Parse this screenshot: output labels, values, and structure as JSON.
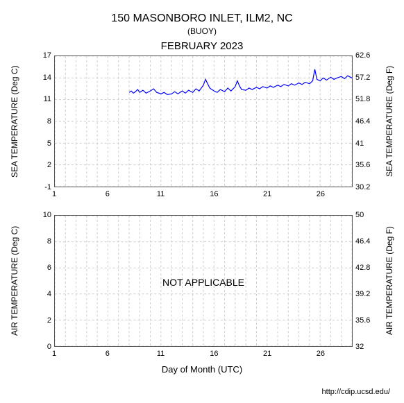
{
  "title_main": "150 MASONBORO INLET, ILM2, NC",
  "title_sub": "(BUOY)",
  "title_month": "FEBRUARY 2023",
  "footer": "http://cdip.ucsd.edu/",
  "xaxis": {
    "label": "Day of Month (UTC)",
    "min": 1,
    "max": 29,
    "ticks": [
      1,
      6,
      11,
      16,
      21,
      26
    ]
  },
  "panels": {
    "sea": {
      "ylabel_left": "SEA TEMPERATURE (Deg C)",
      "ylabel_right": "SEA TEMPERATURE (Deg F)",
      "ylim_left": [
        -1,
        17
      ],
      "yticks_left": [
        -1,
        2,
        5,
        8,
        11,
        14,
        17
      ],
      "ylim_right": [
        30.2,
        62.6
      ],
      "yticks_right": [
        30.2,
        35.6,
        41,
        46.4,
        51.8,
        57.2,
        62.6
      ],
      "grid_color": "#cccccc",
      "border_color": "#555555",
      "line_color": "#0000ff",
      "line_width": 1.2,
      "series": [
        [
          8.0,
          12.0
        ],
        [
          8.2,
          12.2
        ],
        [
          8.4,
          11.9
        ],
        [
          8.6,
          12.1
        ],
        [
          8.8,
          12.4
        ],
        [
          9.0,
          12.0
        ],
        [
          9.3,
          12.3
        ],
        [
          9.6,
          11.9
        ],
        [
          10.0,
          12.2
        ],
        [
          10.3,
          12.5
        ],
        [
          10.6,
          12.0
        ],
        [
          11.0,
          11.8
        ],
        [
          11.3,
          12.0
        ],
        [
          11.6,
          11.7
        ],
        [
          12.0,
          11.8
        ],
        [
          12.3,
          12.1
        ],
        [
          12.6,
          11.8
        ],
        [
          13.0,
          12.2
        ],
        [
          13.3,
          11.9
        ],
        [
          13.6,
          12.3
        ],
        [
          14.0,
          12.0
        ],
        [
          14.3,
          12.5
        ],
        [
          14.6,
          12.2
        ],
        [
          15.0,
          13.0
        ],
        [
          15.2,
          13.8
        ],
        [
          15.4,
          13.2
        ],
        [
          15.6,
          12.6
        ],
        [
          16.0,
          12.2
        ],
        [
          16.3,
          12.0
        ],
        [
          16.6,
          12.4
        ],
        [
          17.0,
          12.1
        ],
        [
          17.3,
          12.6
        ],
        [
          17.6,
          12.2
        ],
        [
          18.0,
          12.8
        ],
        [
          18.2,
          13.6
        ],
        [
          18.4,
          12.9
        ],
        [
          18.6,
          12.4
        ],
        [
          19.0,
          12.3
        ],
        [
          19.3,
          12.6
        ],
        [
          19.6,
          12.4
        ],
        [
          20.0,
          12.7
        ],
        [
          20.3,
          12.5
        ],
        [
          20.6,
          12.8
        ],
        [
          21.0,
          12.6
        ],
        [
          21.3,
          12.9
        ],
        [
          21.6,
          12.7
        ],
        [
          22.0,
          13.0
        ],
        [
          22.3,
          12.8
        ],
        [
          22.6,
          13.1
        ],
        [
          23.0,
          12.9
        ],
        [
          23.3,
          13.2
        ],
        [
          23.6,
          13.0
        ],
        [
          24.0,
          13.3
        ],
        [
          24.3,
          13.1
        ],
        [
          24.6,
          13.4
        ],
        [
          25.0,
          13.2
        ],
        [
          25.3,
          13.6
        ],
        [
          25.5,
          15.2
        ],
        [
          25.7,
          13.8
        ],
        [
          26.0,
          13.6
        ],
        [
          26.3,
          14.0
        ],
        [
          26.6,
          13.7
        ],
        [
          27.0,
          14.1
        ],
        [
          27.3,
          13.8
        ],
        [
          27.6,
          14.0
        ],
        [
          28.0,
          14.2
        ],
        [
          28.3,
          13.9
        ],
        [
          28.6,
          14.3
        ],
        [
          29.0,
          14.0
        ]
      ]
    },
    "air": {
      "ylabel_left": "AIR TEMPERATURE (Deg C)",
      "ylabel_right": "AIR TEMPERATURE (Deg F)",
      "ylim_left": [
        0,
        10
      ],
      "yticks_left": [
        0,
        2,
        4,
        6,
        8,
        10
      ],
      "ylim_right": [
        32,
        50
      ],
      "yticks_right": [
        32,
        35.6,
        39.2,
        42.8,
        46.4,
        50
      ],
      "grid_color": "#cccccc",
      "border_color": "#555555",
      "not_applicable_text": "NOT APPLICABLE"
    }
  }
}
